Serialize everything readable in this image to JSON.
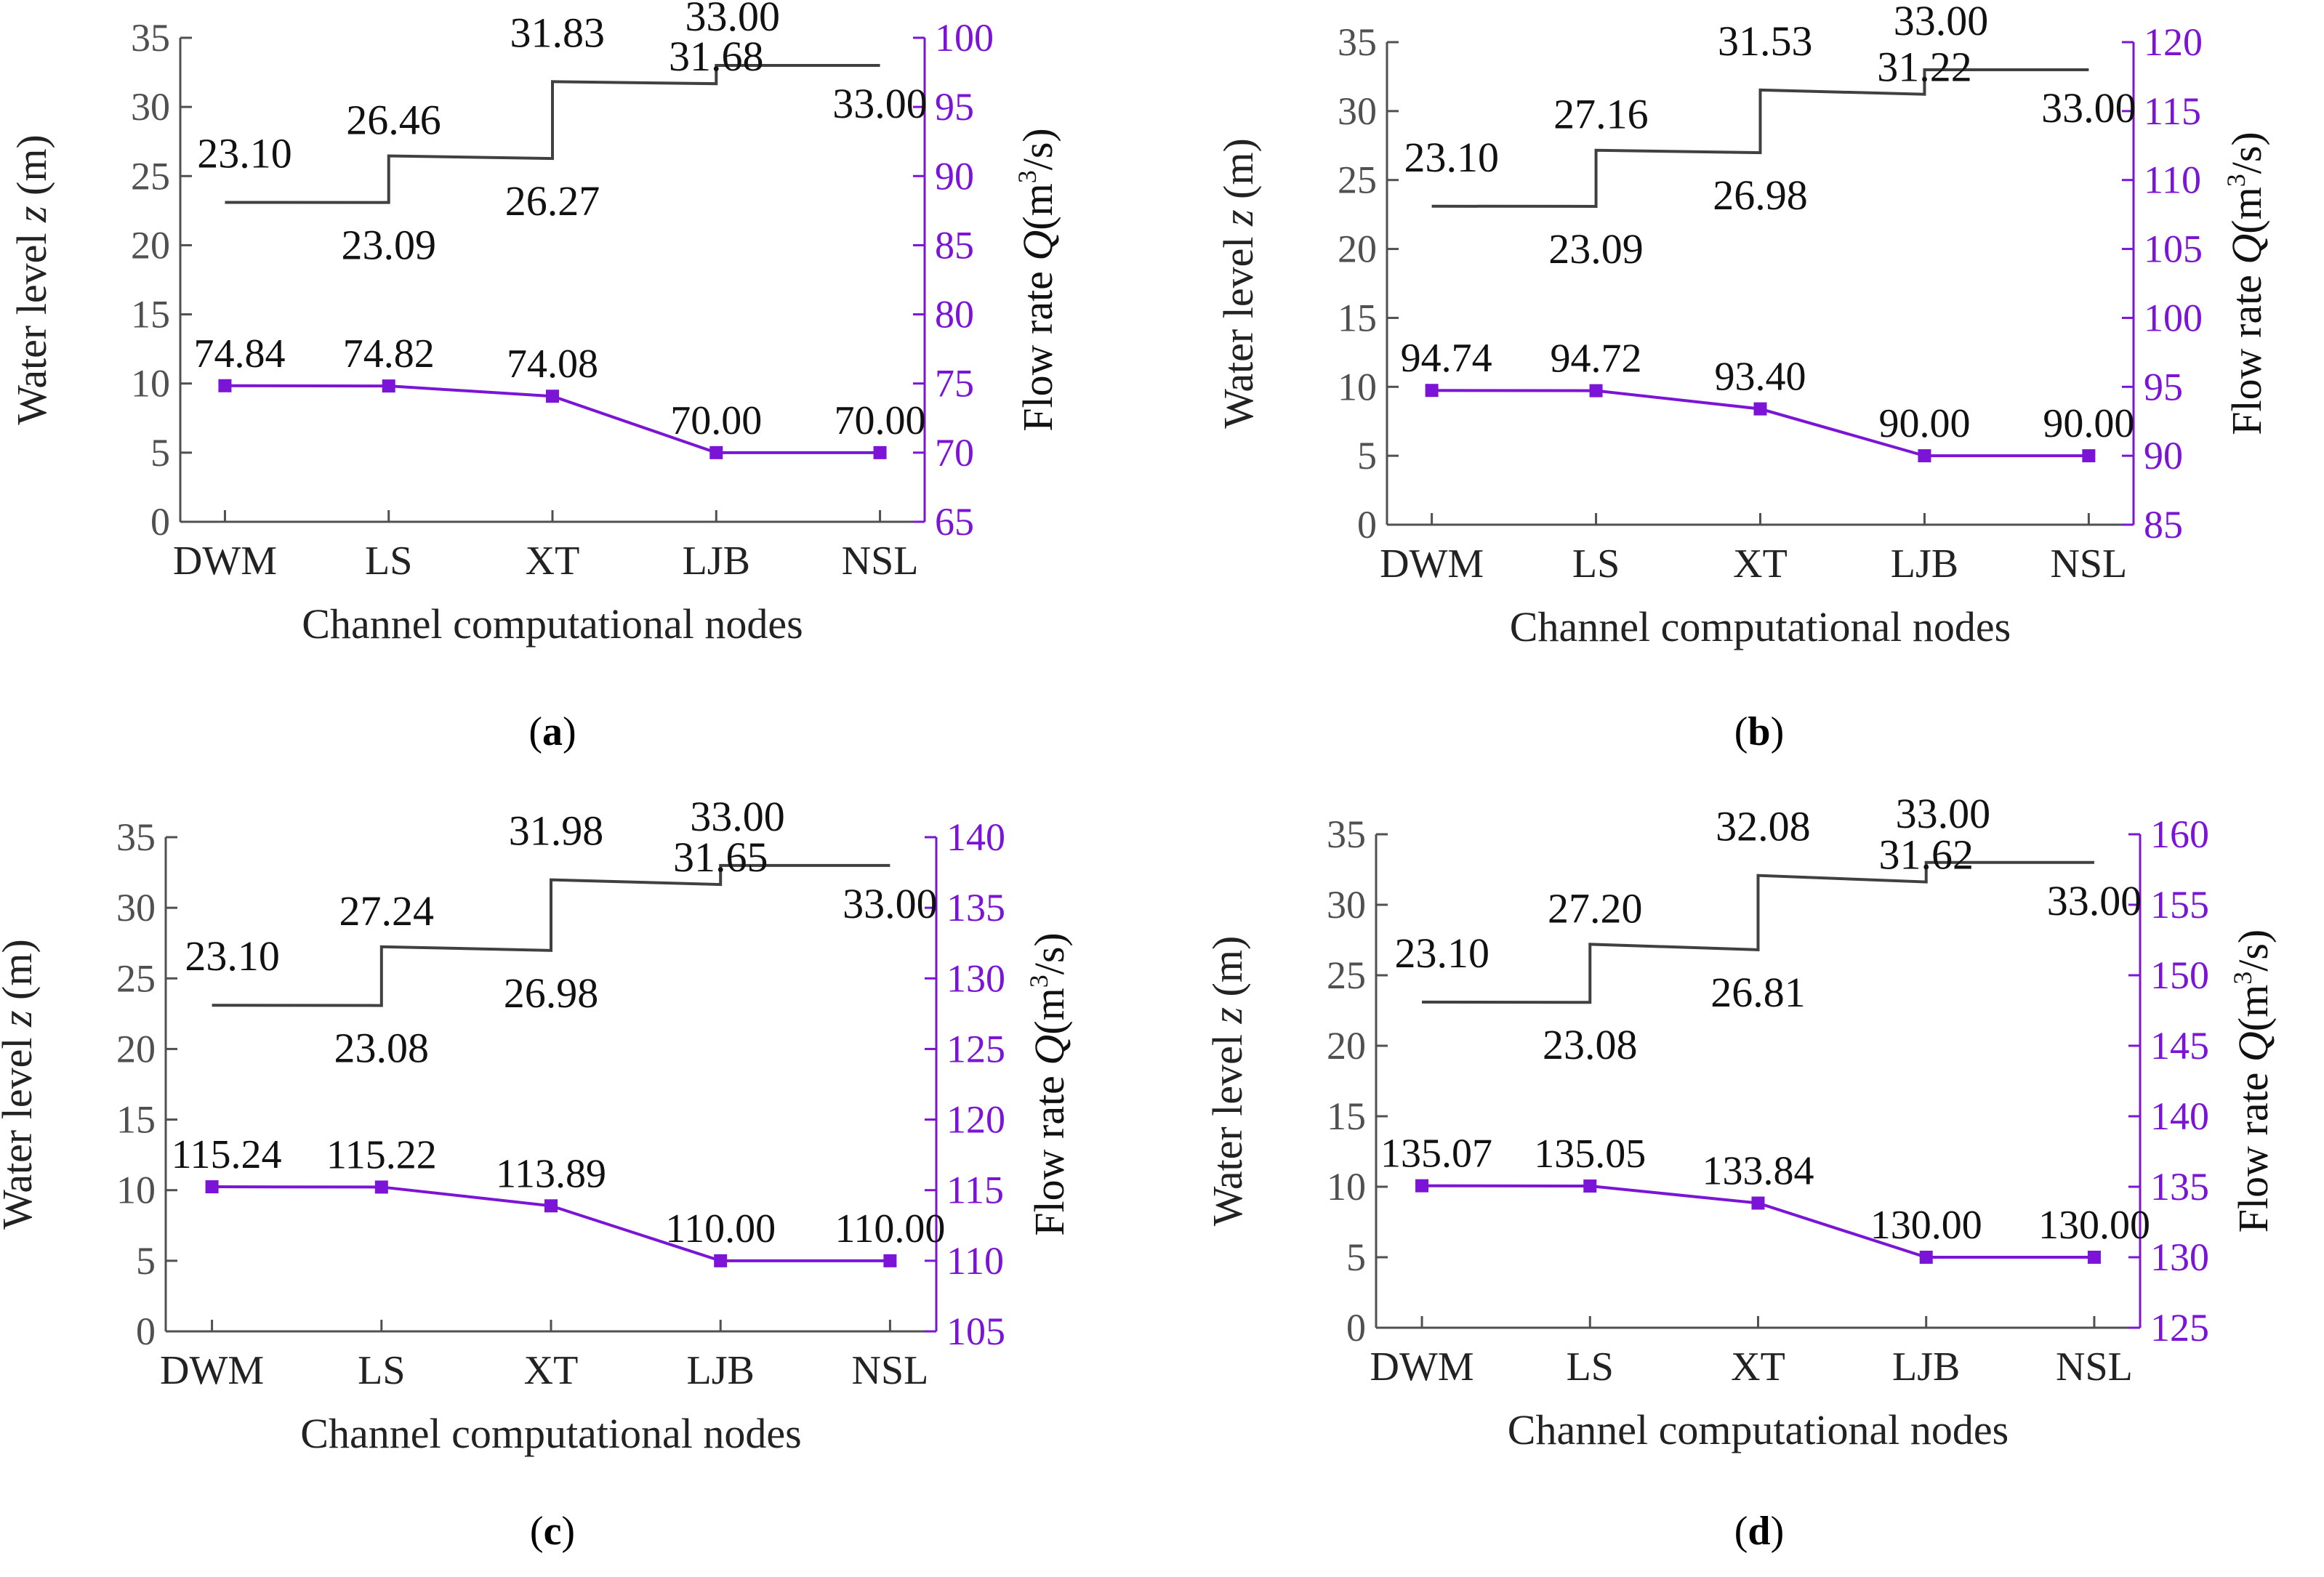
{
  "colors": {
    "water": "#404040",
    "flow": "#7b14d6",
    "axis_left": "#505050"
  },
  "panel_labels": [
    "a",
    "b",
    "c",
    "d"
  ],
  "chart_data": [
    {
      "type": "line",
      "panel": "a",
      "categories": [
        "DWM",
        "LS",
        "XT",
        "LJB",
        "NSL"
      ],
      "xlabel": "Channel computational nodes",
      "ylabel_left": {
        "pre": "Water level ",
        "var": "z",
        "post": " (m)"
      },
      "ylabel_right": {
        "pre": "Flow rate ",
        "var": "Q",
        "post": "(m",
        "sup": "3",
        "tail": "/s)"
      },
      "ylim_left": [
        0,
        35
      ],
      "yticks_left": [
        "0",
        "5",
        "10",
        "15",
        "20",
        "25",
        "30",
        "35"
      ],
      "ylim_right": [
        65,
        100
      ],
      "yticks_right": [
        "65",
        "70",
        "75",
        "80",
        "85",
        "90",
        "95",
        "100"
      ],
      "water_level": {
        "upstream": [
          23.1,
          26.46,
          31.83,
          33.0
        ],
        "downstream": [
          23.09,
          26.27,
          31.68,
          33.0
        ],
        "labels_up": [
          "23.10",
          "26.46",
          "31.83",
          "33.00"
        ],
        "labels_down": [
          "23.09",
          "26.27",
          "31.68",
          "33.00"
        ]
      },
      "flow_rate": {
        "values": [
          74.84,
          74.82,
          74.08,
          70.0,
          70.0
        ],
        "labels": [
          "74.84",
          "74.82",
          "74.08",
          "70.00",
          "70.00"
        ]
      }
    },
    {
      "type": "line",
      "panel": "b",
      "categories": [
        "DWM",
        "LS",
        "XT",
        "LJB",
        "NSL"
      ],
      "xlabel": "Channel computational nodes",
      "ylabel_left": {
        "pre": "Water level ",
        "var": "z",
        "post": " (m)"
      },
      "ylabel_right": {
        "pre": "Flow rate ",
        "var": "Q",
        "post": "(m",
        "sup": "3",
        "tail": "/s)"
      },
      "ylim_left": [
        0,
        35
      ],
      "yticks_left": [
        "0",
        "5",
        "10",
        "15",
        "20",
        "25",
        "30",
        "35"
      ],
      "ylim_right": [
        85,
        120
      ],
      "yticks_right": [
        "85",
        "90",
        "95",
        "100",
        "105",
        "110",
        "115",
        "120"
      ],
      "water_level": {
        "upstream": [
          23.1,
          27.16,
          31.53,
          33.0
        ],
        "downstream": [
          23.09,
          26.98,
          31.22,
          33.0
        ],
        "labels_up": [
          "23.10",
          "27.16",
          "31.53",
          "33.00"
        ],
        "labels_down": [
          "23.09",
          "26.98",
          "31.22",
          "33.00"
        ]
      },
      "flow_rate": {
        "values": [
          94.74,
          94.72,
          93.4,
          90.0,
          90.0
        ],
        "labels": [
          "94.74",
          "94.72",
          "93.40",
          "90.00",
          "90.00"
        ]
      }
    },
    {
      "type": "line",
      "panel": "c",
      "categories": [
        "DWM",
        "LS",
        "XT",
        "LJB",
        "NSL"
      ],
      "xlabel": "Channel computational nodes",
      "ylabel_left": {
        "pre": "Water level ",
        "var": "z",
        "post": " (m)"
      },
      "ylabel_right": {
        "pre": "Flow rate ",
        "var": "Q",
        "post": "(m",
        "sup": "3",
        "tail": "/s)"
      },
      "ylim_left": [
        0,
        35
      ],
      "yticks_left": [
        "0",
        "5",
        "10",
        "15",
        "20",
        "25",
        "30",
        "35"
      ],
      "ylim_right": [
        105,
        140
      ],
      "yticks_right": [
        "105",
        "110",
        "115",
        "120",
        "125",
        "130",
        "135",
        "140"
      ],
      "water_level": {
        "upstream": [
          23.1,
          27.24,
          31.98,
          33.0
        ],
        "downstream": [
          23.08,
          26.98,
          31.65,
          33.0
        ],
        "labels_up": [
          "23.10",
          "27.24",
          "31.98",
          "33.00"
        ],
        "labels_down": [
          "23.08",
          "26.98",
          "31.65",
          "33.00"
        ]
      },
      "flow_rate": {
        "values": [
          115.24,
          115.22,
          113.89,
          110.0,
          110.0
        ],
        "labels": [
          "115.24",
          "115.22",
          "113.89",
          "110.00",
          "110.00"
        ]
      }
    },
    {
      "type": "line",
      "panel": "d",
      "categories": [
        "DWM",
        "LS",
        "XT",
        "LJB",
        "NSL"
      ],
      "xlabel": "Channel computational nodes",
      "ylabel_left": {
        "pre": "Water level ",
        "var": "z",
        "post": " (m)"
      },
      "ylabel_right": {
        "pre": "Flow rate ",
        "var": "Q",
        "post": "(m",
        "sup": "3",
        "tail": "/s)"
      },
      "ylim_left": [
        0,
        35
      ],
      "yticks_left": [
        "0",
        "5",
        "10",
        "15",
        "20",
        "25",
        "30",
        "35"
      ],
      "ylim_right": [
        125,
        160
      ],
      "yticks_right": [
        "125",
        "130",
        "135",
        "140",
        "145",
        "150",
        "155",
        "160"
      ],
      "water_level": {
        "upstream": [
          23.1,
          27.2,
          32.08,
          33.0
        ],
        "downstream": [
          23.08,
          26.81,
          31.62,
          33.0
        ],
        "labels_up": [
          "23.10",
          "27.20",
          "32.08",
          "33.00"
        ],
        "labels_down": [
          "23.08",
          "26.81",
          "31.62",
          "33.00"
        ]
      },
      "flow_rate": {
        "values": [
          135.07,
          135.05,
          133.84,
          130.0,
          130.0
        ],
        "labels": [
          "135.07",
          "135.05",
          "133.84",
          "130.00",
          "130.00"
        ]
      }
    }
  ]
}
